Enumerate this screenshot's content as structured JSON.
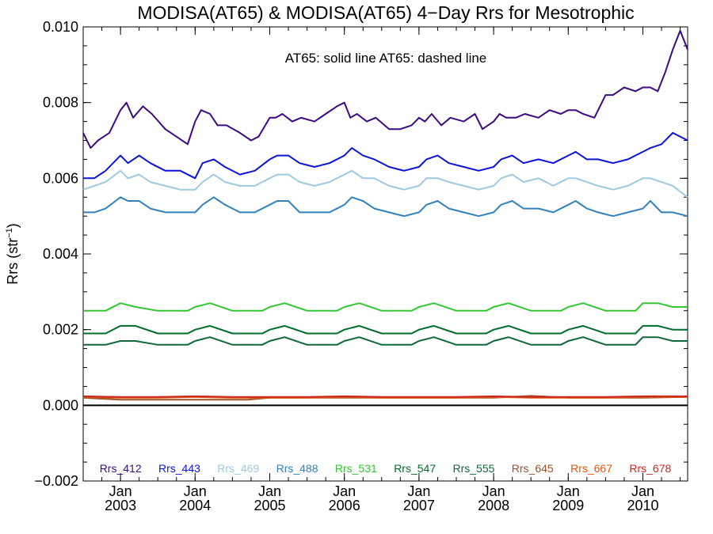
{
  "chart_data": {
    "type": "line",
    "title": "MODISA(AT65) & MODISA(AT65) 4−Day Rrs for Mesotrophic",
    "annotation": "AT65: solid line   AT65: dashed line",
    "ylabel": "Rrs (str",
    "ylabel_sup": "−1",
    "ylabel_close": ")",
    "ylim": [
      -0.002,
      0.01
    ],
    "xlim": [
      2002.5,
      2010.6
    ],
    "yticks": [
      "−0.002",
      "0.000",
      "0.002",
      "0.004",
      "0.006",
      "0.008",
      "0.010"
    ],
    "ytick_values": [
      -0.002,
      0,
      0.002,
      0.004,
      0.006,
      0.008,
      0.01
    ],
    "xticks": [
      {
        "value": 2003,
        "top": "Jan",
        "bottom": "2003"
      },
      {
        "value": 2004,
        "top": "Jan",
        "bottom": "2004"
      },
      {
        "value": 2005,
        "top": "Jan",
        "bottom": "2005"
      },
      {
        "value": 2006,
        "top": "Jan",
        "bottom": "2006"
      },
      {
        "value": 2007,
        "top": "Jan",
        "bottom": "2007"
      },
      {
        "value": 2008,
        "top": "Jan",
        "bottom": "2008"
      },
      {
        "value": 2009,
        "top": "Jan",
        "bottom": "2009"
      },
      {
        "value": 2010,
        "top": "Jan",
        "bottom": "2010"
      }
    ],
    "zero_line": 0,
    "grid": false,
    "legend_position": "bottom",
    "series": [
      {
        "name": "Rrs_412",
        "color": "#3c0a82",
        "x": [
          2002.5,
          2002.6,
          2002.7,
          2002.85,
          2003.0,
          2003.08,
          2003.17,
          2003.3,
          2003.42,
          2003.6,
          2003.75,
          2003.9,
          2004.0,
          2004.08,
          2004.2,
          2004.3,
          2004.42,
          2004.6,
          2004.75,
          2004.85,
          2005.0,
          2005.08,
          2005.17,
          2005.3,
          2005.42,
          2005.6,
          2005.75,
          2005.9,
          2006.0,
          2006.08,
          2006.17,
          2006.3,
          2006.42,
          2006.6,
          2006.75,
          2006.9,
          2007.0,
          2007.08,
          2007.17,
          2007.3,
          2007.42,
          2007.6,
          2007.75,
          2007.85,
          2008.0,
          2008.08,
          2008.17,
          2008.3,
          2008.42,
          2008.6,
          2008.75,
          2008.9,
          2009.0,
          2009.1,
          2009.2,
          2009.35,
          2009.5,
          2009.6,
          2009.75,
          2009.9,
          2010.0,
          2010.1,
          2010.2,
          2010.3,
          2010.4,
          2010.5,
          2010.6
        ],
        "values": [
          0.0072,
          0.0068,
          0.007,
          0.0072,
          0.0078,
          0.008,
          0.0076,
          0.0079,
          0.0077,
          0.0073,
          0.0071,
          0.0069,
          0.0075,
          0.0078,
          0.0077,
          0.0074,
          0.0074,
          0.0072,
          0.007,
          0.0071,
          0.0076,
          0.0076,
          0.0077,
          0.0075,
          0.0076,
          0.0075,
          0.0077,
          0.0079,
          0.008,
          0.0076,
          0.0077,
          0.0075,
          0.0076,
          0.0073,
          0.0073,
          0.0074,
          0.0076,
          0.0075,
          0.0077,
          0.0074,
          0.0076,
          0.0075,
          0.0077,
          0.0073,
          0.0075,
          0.0077,
          0.0076,
          0.0076,
          0.0077,
          0.0076,
          0.0078,
          0.0077,
          0.0078,
          0.0078,
          0.0077,
          0.0076,
          0.0082,
          0.0082,
          0.0084,
          0.0083,
          0.0084,
          0.0084,
          0.0083,
          0.0088,
          0.0094,
          0.0099,
          0.0094
        ]
      },
      {
        "name": "Rrs_443",
        "color": "#0a14dc",
        "x": [
          2002.5,
          2002.65,
          2002.8,
          2003.0,
          2003.1,
          2003.25,
          2003.4,
          2003.6,
          2003.8,
          2004.0,
          2004.1,
          2004.25,
          2004.4,
          2004.6,
          2004.8,
          2005.0,
          2005.1,
          2005.25,
          2005.4,
          2005.6,
          2005.8,
          2006.0,
          2006.1,
          2006.25,
          2006.4,
          2006.6,
          2006.8,
          2007.0,
          2007.1,
          2007.25,
          2007.4,
          2007.6,
          2007.8,
          2008.0,
          2008.1,
          2008.25,
          2008.4,
          2008.6,
          2008.8,
          2009.0,
          2009.1,
          2009.25,
          2009.4,
          2009.6,
          2009.8,
          2010.0,
          2010.1,
          2010.25,
          2010.4,
          2010.6
        ],
        "values": [
          0.006,
          0.006,
          0.0062,
          0.0066,
          0.0064,
          0.0066,
          0.0064,
          0.0062,
          0.0062,
          0.006,
          0.0064,
          0.0065,
          0.0063,
          0.0061,
          0.0062,
          0.0065,
          0.0066,
          0.0066,
          0.0064,
          0.0063,
          0.0064,
          0.0066,
          0.0068,
          0.0066,
          0.0065,
          0.0063,
          0.0062,
          0.0063,
          0.0065,
          0.0066,
          0.0064,
          0.0063,
          0.0062,
          0.0063,
          0.0065,
          0.0066,
          0.0064,
          0.0065,
          0.0064,
          0.0066,
          0.0067,
          0.0065,
          0.0065,
          0.0064,
          0.0065,
          0.0067,
          0.0068,
          0.0069,
          0.0072,
          0.007
        ]
      },
      {
        "name": "Rrs_469",
        "color": "#9ecae1",
        "x": [
          2002.5,
          2002.65,
          2002.8,
          2003.0,
          2003.1,
          2003.25,
          2003.4,
          2003.6,
          2003.8,
          2004.0,
          2004.1,
          2004.25,
          2004.4,
          2004.6,
          2004.8,
          2005.0,
          2005.1,
          2005.25,
          2005.4,
          2005.6,
          2005.8,
          2006.0,
          2006.1,
          2006.25,
          2006.4,
          2006.6,
          2006.8,
          2007.0,
          2007.1,
          2007.25,
          2007.4,
          2007.6,
          2007.8,
          2008.0,
          2008.1,
          2008.25,
          2008.4,
          2008.6,
          2008.8,
          2009.0,
          2009.1,
          2009.25,
          2009.4,
          2009.6,
          2009.8,
          2010.0,
          2010.1,
          2010.25,
          2010.4,
          2010.6
        ],
        "values": [
          0.0057,
          0.0058,
          0.0059,
          0.0062,
          0.006,
          0.0061,
          0.0059,
          0.0058,
          0.0057,
          0.0057,
          0.0059,
          0.0061,
          0.0059,
          0.0058,
          0.0058,
          0.006,
          0.0061,
          0.0061,
          0.0059,
          0.0058,
          0.0059,
          0.0061,
          0.0062,
          0.006,
          0.006,
          0.0058,
          0.0057,
          0.0058,
          0.006,
          0.006,
          0.0059,
          0.0058,
          0.0057,
          0.0058,
          0.006,
          0.0061,
          0.0059,
          0.006,
          0.0058,
          0.006,
          0.006,
          0.0059,
          0.0058,
          0.0057,
          0.0058,
          0.006,
          0.006,
          0.0059,
          0.0058,
          0.0055
        ]
      },
      {
        "name": "Rrs_488",
        "color": "#3182bd",
        "x": [
          2002.5,
          2002.65,
          2002.8,
          2003.0,
          2003.1,
          2003.25,
          2003.4,
          2003.6,
          2003.8,
          2004.0,
          2004.1,
          2004.25,
          2004.4,
          2004.6,
          2004.8,
          2005.0,
          2005.1,
          2005.25,
          2005.4,
          2005.6,
          2005.8,
          2006.0,
          2006.1,
          2006.25,
          2006.4,
          2006.6,
          2006.8,
          2007.0,
          2007.1,
          2007.25,
          2007.4,
          2007.6,
          2007.8,
          2008.0,
          2008.1,
          2008.25,
          2008.4,
          2008.6,
          2008.8,
          2009.0,
          2009.1,
          2009.25,
          2009.4,
          2009.6,
          2009.8,
          2010.0,
          2010.1,
          2010.25,
          2010.4,
          2010.6
        ],
        "values": [
          0.0051,
          0.0051,
          0.0052,
          0.0055,
          0.0054,
          0.0054,
          0.0052,
          0.0051,
          0.0051,
          0.0051,
          0.0053,
          0.0055,
          0.0053,
          0.0051,
          0.0051,
          0.0053,
          0.0054,
          0.0054,
          0.0051,
          0.0051,
          0.0051,
          0.0053,
          0.0055,
          0.0054,
          0.0052,
          0.0051,
          0.005,
          0.0051,
          0.0053,
          0.0054,
          0.0052,
          0.0051,
          0.005,
          0.0051,
          0.0053,
          0.0054,
          0.0052,
          0.0052,
          0.0051,
          0.0053,
          0.0054,
          0.0052,
          0.0051,
          0.005,
          0.0051,
          0.0052,
          0.0054,
          0.0051,
          0.0051,
          0.005
        ]
      },
      {
        "name": "Rrs_531",
        "color": "#32c832",
        "x": [
          2002.5,
          2002.8,
          2003.0,
          2003.2,
          2003.5,
          2003.9,
          2004.0,
          2004.2,
          2004.5,
          2004.9,
          2005.0,
          2005.2,
          2005.5,
          2005.9,
          2006.0,
          2006.2,
          2006.5,
          2006.9,
          2007.0,
          2007.2,
          2007.5,
          2007.9,
          2008.0,
          2008.2,
          2008.5,
          2008.9,
          2009.0,
          2009.2,
          2009.5,
          2009.9,
          2010.0,
          2010.2,
          2010.4,
          2010.6
        ],
        "values": [
          0.0025,
          0.0025,
          0.0027,
          0.0026,
          0.0025,
          0.0025,
          0.0026,
          0.0027,
          0.0025,
          0.0025,
          0.0026,
          0.0027,
          0.0025,
          0.0025,
          0.0026,
          0.0027,
          0.0025,
          0.0025,
          0.0026,
          0.0027,
          0.0025,
          0.0025,
          0.0026,
          0.0027,
          0.0025,
          0.0025,
          0.0026,
          0.0027,
          0.0025,
          0.0025,
          0.0027,
          0.0027,
          0.0026,
          0.0026
        ]
      },
      {
        "name": "Rrs_547",
        "color": "#006d2c",
        "x": [
          2002.5,
          2002.8,
          2003.0,
          2003.2,
          2003.5,
          2003.9,
          2004.0,
          2004.2,
          2004.5,
          2004.9,
          2005.0,
          2005.2,
          2005.5,
          2005.9,
          2006.0,
          2006.2,
          2006.5,
          2006.9,
          2007.0,
          2007.2,
          2007.5,
          2007.9,
          2008.0,
          2008.2,
          2008.5,
          2008.9,
          2009.0,
          2009.2,
          2009.5,
          2009.9,
          2010.0,
          2010.2,
          2010.4,
          2010.6
        ],
        "values": [
          0.0019,
          0.0019,
          0.0021,
          0.0021,
          0.0019,
          0.0019,
          0.002,
          0.0021,
          0.0019,
          0.0019,
          0.002,
          0.0021,
          0.0019,
          0.0019,
          0.002,
          0.0021,
          0.0019,
          0.0019,
          0.002,
          0.0021,
          0.0019,
          0.0019,
          0.002,
          0.0021,
          0.0019,
          0.0019,
          0.002,
          0.0021,
          0.0019,
          0.0019,
          0.0021,
          0.0021,
          0.002,
          0.002
        ]
      },
      {
        "name": "Rrs_555",
        "color": "#11663a",
        "x": [
          2002.5,
          2002.8,
          2003.0,
          2003.2,
          2003.5,
          2003.9,
          2004.0,
          2004.2,
          2004.5,
          2004.9,
          2005.0,
          2005.2,
          2005.5,
          2005.9,
          2006.0,
          2006.2,
          2006.5,
          2006.9,
          2007.0,
          2007.2,
          2007.5,
          2007.9,
          2008.0,
          2008.2,
          2008.5,
          2008.9,
          2009.0,
          2009.2,
          2009.5,
          2009.9,
          2010.0,
          2010.2,
          2010.4,
          2010.6
        ],
        "values": [
          0.0016,
          0.0016,
          0.0017,
          0.0017,
          0.0016,
          0.0016,
          0.0017,
          0.0018,
          0.0016,
          0.0016,
          0.0017,
          0.0018,
          0.0016,
          0.0016,
          0.0017,
          0.0018,
          0.0016,
          0.0016,
          0.0017,
          0.0018,
          0.0016,
          0.0016,
          0.0017,
          0.0018,
          0.0016,
          0.0016,
          0.0017,
          0.0018,
          0.0016,
          0.0016,
          0.0018,
          0.0018,
          0.0017,
          0.0017
        ]
      },
      {
        "name": "Rrs_645",
        "color": "#a0522d",
        "x": [
          2002.5,
          2003.0,
          2003.5,
          2004.0,
          2004.5,
          2004.7,
          2005.0,
          2005.5,
          2006.0,
          2006.5,
          2007.0,
          2007.5,
          2008.0,
          2008.5,
          2009.0,
          2009.5,
          2010.0,
          2010.6
        ],
        "values": [
          0.0002,
          0.00015,
          0.00015,
          0.00015,
          0.00015,
          0.00015,
          0.0002,
          0.0002,
          0.0002,
          0.0002,
          0.0002,
          0.0002,
          0.0002,
          0.00025,
          0.0002,
          0.0002,
          0.0002,
          0.00022
        ]
      },
      {
        "name": "Rrs_667",
        "color": "#e6550d",
        "x": [
          2002.5,
          2003.0,
          2003.5,
          2004.0,
          2004.5,
          2005.0,
          2005.5,
          2006.0,
          2006.5,
          2007.0,
          2007.5,
          2008.0,
          2008.5,
          2009.0,
          2009.5,
          2010.0,
          2010.6
        ],
        "values": [
          0.00022,
          0.0002,
          0.0002,
          0.00022,
          0.0002,
          0.0002,
          0.0002,
          0.00022,
          0.0002,
          0.0002,
          0.0002,
          0.00022,
          0.0002,
          0.0002,
          0.0002,
          0.00022,
          0.00022
        ]
      },
      {
        "name": "Rrs_678",
        "color": "#c8281e",
        "x": [
          2002.5,
          2003.0,
          2003.5,
          2004.0,
          2004.5,
          2005.0,
          2005.5,
          2006.0,
          2006.5,
          2007.0,
          2007.5,
          2008.0,
          2008.5,
          2009.0,
          2009.5,
          2010.0,
          2010.6
        ],
        "values": [
          0.00024,
          0.00022,
          0.00022,
          0.00024,
          0.00022,
          0.00022,
          0.00022,
          0.00024,
          0.00022,
          0.00022,
          0.00022,
          0.00024,
          0.00022,
          0.00022,
          0.00022,
          0.00024,
          0.00024
        ]
      }
    ]
  }
}
